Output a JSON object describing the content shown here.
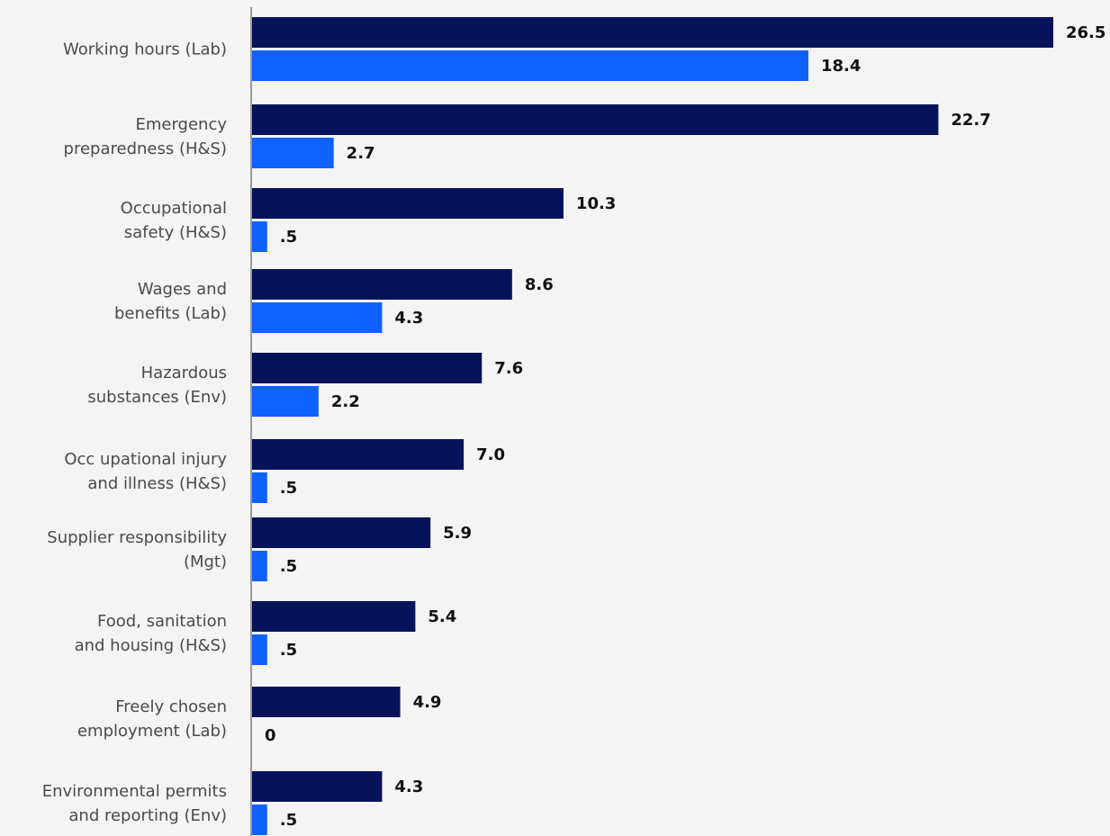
{
  "chart_data": {
    "type": "bar",
    "orientation": "horizontal",
    "categories": [
      [
        "Working hours (Lab)"
      ],
      [
        "Emergency",
        "preparedness (H&S)"
      ],
      [
        "Occupational",
        "safety (H&S)"
      ],
      [
        "Wages and",
        "benefits (Lab)"
      ],
      [
        "Hazardous",
        "substances (Env)"
      ],
      [
        "Occ upational injury",
        "and illness (H&S)"
      ],
      [
        "Supplier responsibility",
        "(Mgt)"
      ],
      [
        "Food, sanitation",
        "and housing (H&S)"
      ],
      [
        "Freely chosen",
        "employment (Lab)"
      ],
      [
        "Environmental permits",
        "and reporting (Env)"
      ]
    ],
    "series": [
      {
        "color": "#06125a",
        "values": [
          26.5,
          22.7,
          10.3,
          8.6,
          7.6,
          7.0,
          5.9,
          5.4,
          4.9,
          4.3
        ],
        "labels": [
          "26.5",
          "22.7",
          "10.3",
          "8.6",
          "7.6",
          "7.0",
          "5.9",
          "5.4",
          "4.9",
          "4.3"
        ]
      },
      {
        "color": "#0f62fe",
        "values": [
          18.4,
          2.7,
          0.5,
          4.3,
          2.2,
          0.5,
          0.5,
          0.5,
          0,
          0.5
        ],
        "labels": [
          "18.4",
          "2.7",
          ".5",
          "4.3",
          "2.2",
          ".5",
          ".5",
          ".5",
          "0",
          ".5"
        ]
      }
    ],
    "xlim": [
      0,
      26.5
    ],
    "grid": false,
    "legend": "none"
  }
}
